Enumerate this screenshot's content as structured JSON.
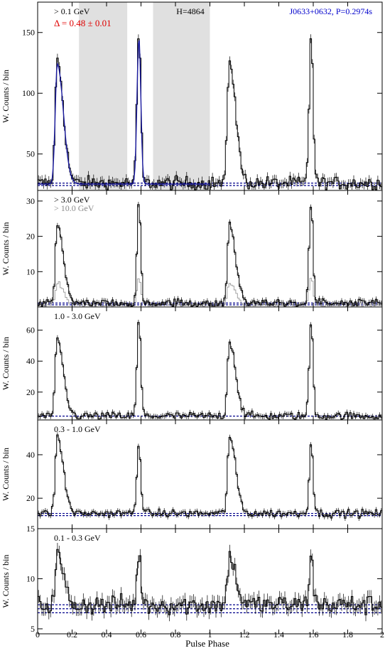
{
  "chart_data": {
    "type": "line",
    "xlabel": "Pulse Phase",
    "ylabel": "W. Counts / bin",
    "xlim": [
      0,
      2
    ],
    "xticks": [
      "0",
      "0.2",
      "0.4",
      "0.6",
      "0.8",
      "1",
      "1.2",
      "1.4",
      "1.6",
      "1.8",
      "2"
    ],
    "panels": [
      {
        "id": "p1",
        "energy_label": "> 0.1 GeV",
        "delta_label": "Δ = 0.48 ± 0.01",
        "h_label": "H=4864",
        "source_label": "J0633+0632, P=0.2974s",
        "ylim": [
          20,
          175
        ],
        "yticks": [
          50,
          100,
          150
        ],
        "background_level": [
          24,
          26
        ],
        "offpulse_regions": [
          [
            0.24,
            0.52
          ],
          [
            0.67,
            1.0
          ]
        ],
        "peaks": [
          {
            "phase": 0.114,
            "height": 128
          },
          {
            "phase": 0.588,
            "height": 150
          }
        ],
        "model_fit": true
      },
      {
        "id": "p2",
        "energy_label": "> 3.0 GeV",
        "energy_label_2": "> 10.0 GeV",
        "ylim": [
          0,
          33
        ],
        "yticks": [
          10,
          20,
          30
        ],
        "background_level": [
          0.6,
          1.1
        ],
        "peaks": [
          {
            "phase": 0.114,
            "height": 23
          },
          {
            "phase": 0.588,
            "height": 30
          }
        ]
      },
      {
        "id": "p3",
        "energy_label": "1.0 - 3.0 GeV",
        "ylim": [
          2,
          75
        ],
        "yticks": [
          20,
          40,
          60
        ],
        "background_level": [
          4.5,
          4.5
        ],
        "peaks": [
          {
            "phase": 0.114,
            "height": 53
          },
          {
            "phase": 0.588,
            "height": 66
          }
        ]
      },
      {
        "id": "p4",
        "energy_label": "0.3 - 1.0 GeV",
        "ylim": [
          6,
          56
        ],
        "yticks": [
          20,
          40
        ],
        "background_level": [
          12,
          13
        ],
        "peaks": [
          {
            "phase": 0.114,
            "height": 48
          },
          {
            "phase": 0.588,
            "height": 46
          }
        ]
      },
      {
        "id": "p5",
        "energy_label": "0.1 - 0.3 GeV",
        "ylim": [
          4.5,
          15
        ],
        "yticks": [
          5,
          10,
          15
        ],
        "background_level": [
          6.6,
          7.0,
          7.4
        ],
        "peaks": [
          {
            "phase": 0.114,
            "height": 12.3
          },
          {
            "phase": 0.588,
            "height": 12.6
          }
        ]
      }
    ]
  }
}
